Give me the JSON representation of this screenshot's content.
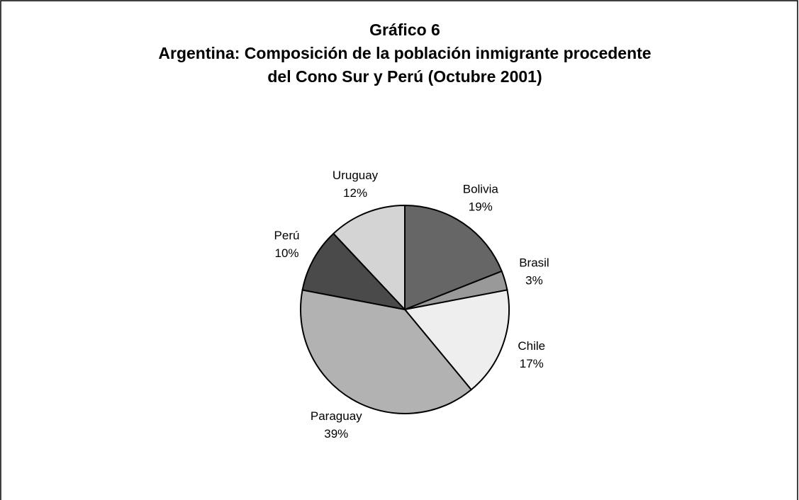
{
  "chart_data": {
    "type": "pie",
    "title": [
      "Gráfico 6",
      "Argentina: Composición de la población inmigrante procedente",
      "del Cono Sur y Perú (Octubre 2001)"
    ],
    "categories": [
      "Bolivia",
      "Brasil",
      "Chile",
      "Paraguay",
      "Perú",
      "Uruguay"
    ],
    "values": [
      19,
      3,
      17,
      39,
      10,
      12
    ],
    "value_labels": [
      "19%",
      "3%",
      "17%",
      "39%",
      "10%",
      "12%"
    ],
    "colors": [
      "#666666",
      "#999999",
      "#eeeeee",
      "#b2b2b2",
      "#4a4a4a",
      "#d4d4d4"
    ]
  }
}
